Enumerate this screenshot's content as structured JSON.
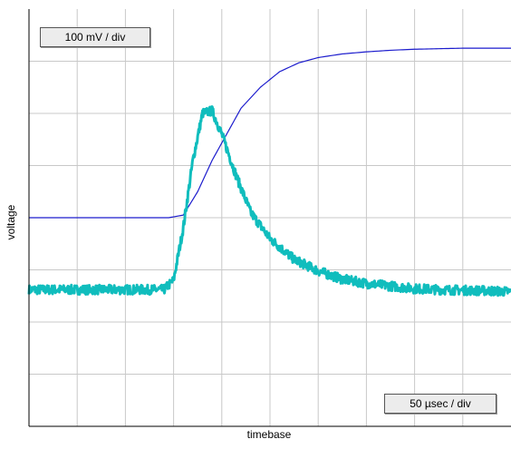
{
  "chart_data": {
    "type": "line",
    "xlabel": "timebase",
    "ylabel": "voltage",
    "x_scale_label": "50 µsec / div",
    "y_scale_label": "100 mV / div",
    "x_divisions": 10,
    "y_divisions": 8,
    "xlim": [
      0,
      10
    ],
    "ylim": [
      -4,
      4
    ],
    "grid": true,
    "series": [
      {
        "color": "#1c1ccd",
        "x": [
          0,
          1,
          2,
          2.9,
          3.2,
          3.5,
          3.8,
          4.1,
          4.4,
          4.8,
          5.2,
          5.6,
          6.0,
          6.5,
          7.0,
          7.5,
          8.0,
          8.5,
          9.0,
          9.5,
          10
        ],
        "y": [
          0.0,
          0.0,
          0.0,
          0.0,
          0.05,
          0.5,
          1.1,
          1.6,
          2.1,
          2.5,
          2.8,
          2.97,
          3.07,
          3.14,
          3.18,
          3.21,
          3.23,
          3.24,
          3.25,
          3.25,
          3.25
        ]
      },
      {
        "color": "#10bdbd",
        "x": [
          0,
          1,
          2,
          2.8,
          3.0,
          3.2,
          3.4,
          3.6,
          3.8,
          4.0,
          4.3,
          4.6,
          5.0,
          5.5,
          6.0,
          6.5,
          7.0,
          7.5,
          8.0,
          8.5,
          9.0,
          9.5,
          10
        ],
        "y": [
          -1.38,
          -1.38,
          -1.38,
          -1.38,
          -1.2,
          -0.2,
          1.1,
          2.0,
          2.05,
          1.6,
          0.8,
          0.1,
          -0.4,
          -0.8,
          -1.02,
          -1.18,
          -1.26,
          -1.31,
          -1.36,
          -1.38,
          -1.39,
          -1.4,
          -1.42
        ]
      }
    ]
  }
}
